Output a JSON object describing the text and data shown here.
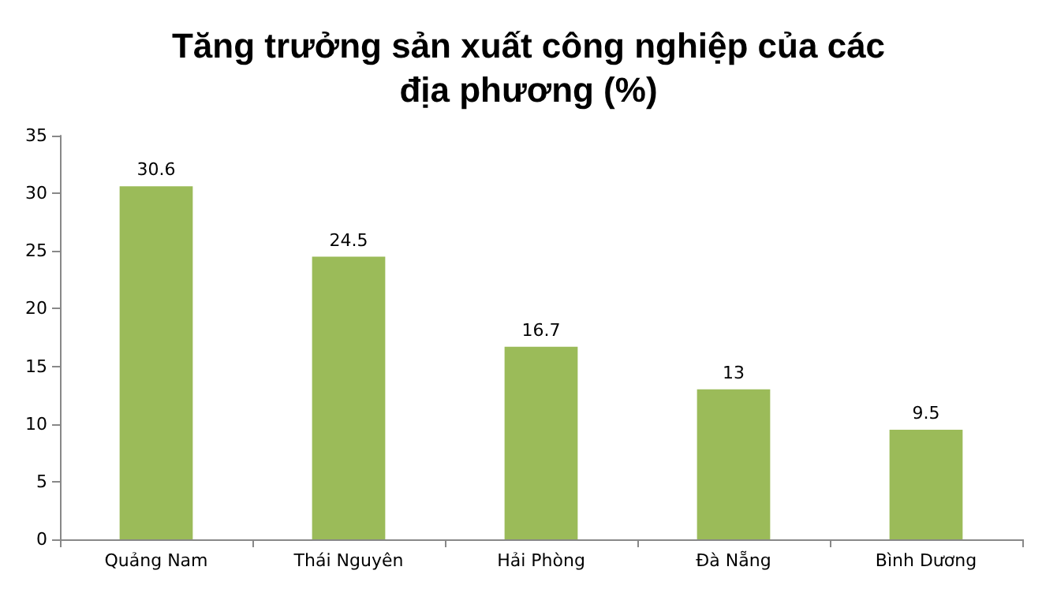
{
  "chart_data": {
    "type": "bar",
    "title": "Tăng trưởng sản xuất công nghiệp của các\nđịa phương (%)",
    "categories": [
      "Quảng Nam",
      "Thái Nguyên",
      "Hải Phòng",
      "Đà Nẵng",
      "Bình Dương"
    ],
    "values": [
      30.6,
      24.5,
      16.7,
      13,
      9.5
    ],
    "color": "#9bbb59",
    "ylim": [
      0,
      35
    ],
    "yticks": [
      0,
      5,
      10,
      15,
      20,
      25,
      30,
      35
    ],
    "grid": false,
    "data_labels": true
  }
}
